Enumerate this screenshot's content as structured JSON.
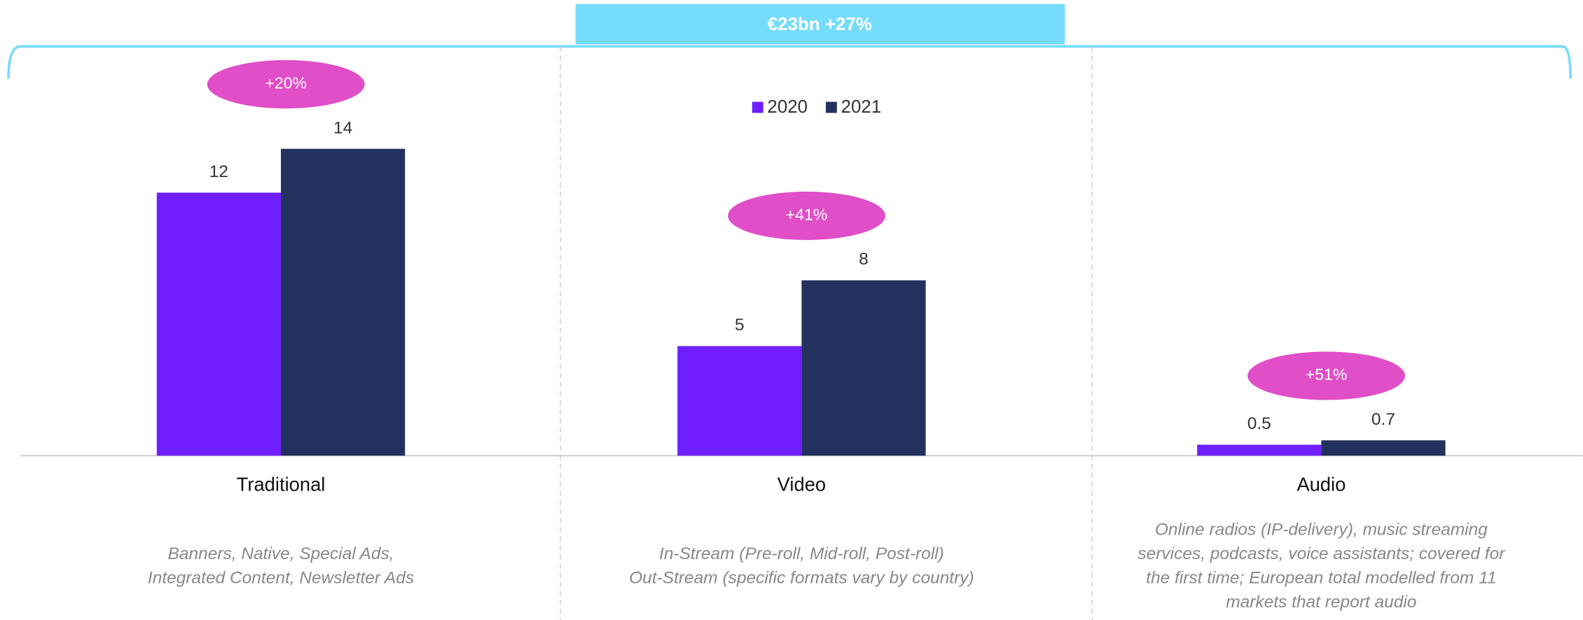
{
  "chart_data": {
    "type": "bar",
    "header": "€23bn +27%",
    "categories": [
      "Traditional",
      "Video",
      "Audio"
    ],
    "series": [
      {
        "name": "2020",
        "color": "#6f1fff",
        "values": [
          12,
          5,
          0.5
        ]
      },
      {
        "name": "2021",
        "color": "#22315e",
        "values": [
          14,
          8,
          0.7
        ]
      }
    ],
    "growth_labels": [
      "+20%",
      "+41%",
      "+51%"
    ],
    "descriptions": [
      [
        "Banners, Native, Special Ads,",
        "Integrated Content, Newsletter Ads"
      ],
      [
        "In-Stream (Pre-roll, Mid-roll, Post-roll)",
        "Out-Stream (specific formats vary by country)"
      ],
      [
        "Online radios (IP-delivery), music streaming",
        "services, podcasts, voice assistants; covered for",
        "the first time; European total modelled from 11",
        "markets that report audio"
      ]
    ],
    "ylim": [
      0,
      15.5
    ],
    "header_color": "#75dcfb",
    "growth_color": "#e04ec8"
  }
}
